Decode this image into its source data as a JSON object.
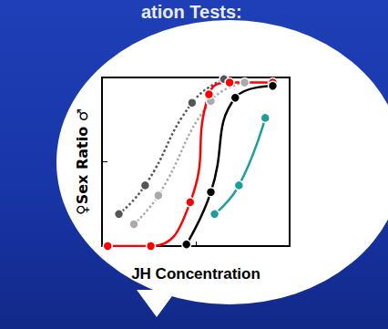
{
  "chart_data": {
    "type": "line",
    "title": "ation Tests:",
    "x_label": "JH Concentration",
    "y_label": "♀Sex Ratio ♂",
    "xlim": [
      0,
      10
    ],
    "xticks": [
      0,
      5,
      10
    ],
    "ylim": [
      0,
      1
    ],
    "yticks": [
      0,
      0.5,
      1
    ],
    "grid": false,
    "tick_labels": false,
    "series": [
      {
        "color": "#555555",
        "marker": "circle",
        "line_style": "dotted",
        "x": [
          0.9,
          2.3,
          4.8,
          6.5
        ],
        "values": [
          0.19,
          0.36,
          0.85,
          0.99
        ]
      },
      {
        "color": "#aaaaaa",
        "marker": "circle",
        "line_style": "dotted",
        "x": [
          1.7,
          3.0,
          5.8,
          7.6
        ],
        "values": [
          0.13,
          0.3,
          0.86,
          0.97
        ]
      },
      {
        "color": "#ff0000",
        "marker": "circle",
        "line_style": "solid",
        "x": [
          0.3,
          2.6,
          4.7,
          5.7,
          6.8,
          9.1
        ],
        "values": [
          0.0,
          0.0,
          0.26,
          0.9,
          0.97,
          0.97
        ]
      },
      {
        "color": "#000000",
        "marker": "circle",
        "line_style": "solid",
        "x": [
          4.5,
          5.8,
          7.1,
          9.1
        ],
        "values": [
          0.01,
          0.32,
          0.88,
          0.95
        ]
      },
      {
        "color": "#1a9e9e",
        "marker": "circle",
        "line_style": "solid",
        "x": [
          6.0,
          7.3,
          8.7
        ],
        "values": [
          0.19,
          0.36,
          0.76
        ]
      }
    ]
  }
}
